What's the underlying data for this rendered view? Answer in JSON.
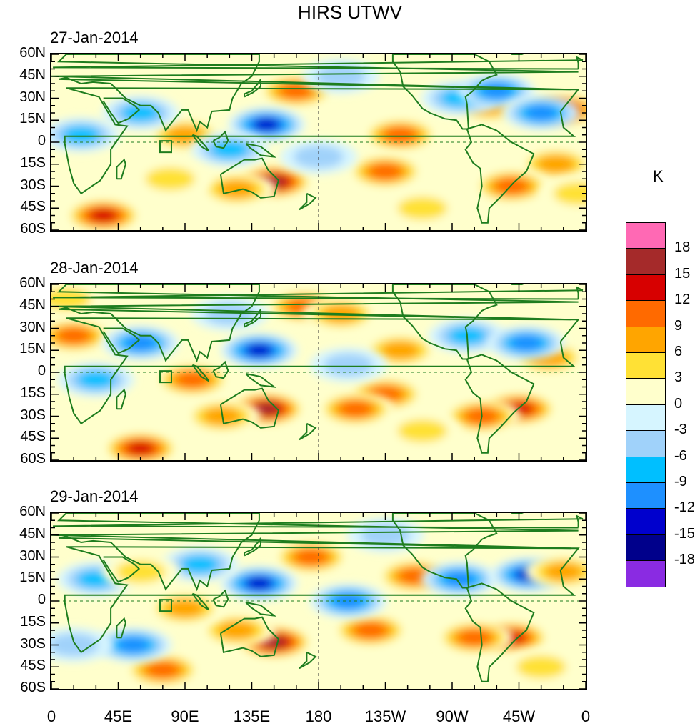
{
  "title": "HIRS UTWV",
  "unit": "K",
  "colorbar": {
    "colors": [
      "#8a2be2",
      "#00008b",
      "#0000cd",
      "#1e90ff",
      "#00bfff",
      "#a0d2fa",
      "#d6f5ff",
      "#ffffcc",
      "#ffe135",
      "#ffa500",
      "#ff6a00",
      "#d70000",
      "#a52a2a",
      "#ff69b4"
    ],
    "labels": [
      "18",
      "15",
      "12",
      "9",
      "6",
      "3",
      "0",
      "-3",
      "-6",
      "-9",
      "-12",
      "-15",
      "-18"
    ]
  },
  "chart_data": {
    "type": "heatmap",
    "title": "HIRS UTWV",
    "colorbar_unit": "K",
    "levels": [
      -18,
      -15,
      -12,
      -9,
      -6,
      -3,
      0,
      3,
      6,
      9,
      12,
      15,
      18
    ],
    "x_ticks": [
      "0",
      "45E",
      "90E",
      "135E",
      "180",
      "135W",
      "90W",
      "45W",
      "0"
    ],
    "y_ticks": [
      "60N",
      "45N",
      "30N",
      "15N",
      "0",
      "15S",
      "30S",
      "45S",
      "60S"
    ],
    "xlim": [
      0,
      360
    ],
    "ylim": [
      -60,
      60
    ],
    "panels": [
      {
        "date": "27-Jan-2014",
        "features": [
          {
            "lon": 345,
            "lat": 22,
            "value": 14
          },
          {
            "lon": 150,
            "lat": -27,
            "value": 17
          },
          {
            "lon": 125,
            "lat": -32,
            "value": 9
          },
          {
            "lon": 35,
            "lat": -50,
            "value": 14
          },
          {
            "lon": 165,
            "lat": 35,
            "value": 10
          },
          {
            "lon": 145,
            "lat": 12,
            "value": -15
          },
          {
            "lon": 90,
            "lat": 5,
            "value": 9
          },
          {
            "lon": 235,
            "lat": 5,
            "value": 10
          },
          {
            "lon": 225,
            "lat": -20,
            "value": 12
          },
          {
            "lon": 295,
            "lat": 25,
            "value": 9
          },
          {
            "lon": 340,
            "lat": -15,
            "value": 9
          },
          {
            "lon": 310,
            "lat": -30,
            "value": 12
          },
          {
            "lon": 275,
            "lat": 30,
            "value": -9
          },
          {
            "lon": 300,
            "lat": 35,
            "value": -12
          },
          {
            "lon": 330,
            "lat": 20,
            "value": -12
          },
          {
            "lon": 60,
            "lat": 20,
            "value": -9
          },
          {
            "lon": 20,
            "lat": 5,
            "value": -9
          },
          {
            "lon": 195,
            "lat": 45,
            "value": -6
          },
          {
            "lon": 180,
            "lat": -10,
            "value": -6
          },
          {
            "lon": 120,
            "lat": -5,
            "value": -9
          },
          {
            "lon": 80,
            "lat": -25,
            "value": 6
          },
          {
            "lon": 250,
            "lat": -45,
            "value": 6
          },
          {
            "lon": 355,
            "lat": -35,
            "value": 6
          }
        ]
      },
      {
        "date": "28-Jan-2014",
        "features": [
          {
            "lon": 145,
            "lat": -25,
            "value": 18
          },
          {
            "lon": 115,
            "lat": -30,
            "value": 9
          },
          {
            "lon": 15,
            "lat": 25,
            "value": 12
          },
          {
            "lon": 60,
            "lat": -52,
            "value": 14
          },
          {
            "lon": 170,
            "lat": 45,
            "value": 10
          },
          {
            "lon": 195,
            "lat": 40,
            "value": 9
          },
          {
            "lon": 140,
            "lat": 15,
            "value": -15
          },
          {
            "lon": 95,
            "lat": -5,
            "value": 10
          },
          {
            "lon": 235,
            "lat": 15,
            "value": 8
          },
          {
            "lon": 225,
            "lat": -15,
            "value": 10
          },
          {
            "lon": 205,
            "lat": -25,
            "value": 12
          },
          {
            "lon": 315,
            "lat": -25,
            "value": 14
          },
          {
            "lon": 290,
            "lat": -30,
            "value": 12
          },
          {
            "lon": 335,
            "lat": 10,
            "value": 8
          },
          {
            "lon": 280,
            "lat": 25,
            "value": -9
          },
          {
            "lon": 320,
            "lat": 20,
            "value": -12
          },
          {
            "lon": 60,
            "lat": 20,
            "value": -12
          },
          {
            "lon": 30,
            "lat": -5,
            "value": -9
          },
          {
            "lon": 120,
            "lat": 40,
            "value": -6
          },
          {
            "lon": 200,
            "lat": 5,
            "value": -6
          },
          {
            "lon": 250,
            "lat": -40,
            "value": 6
          },
          {
            "lon": 10,
            "lat": 50,
            "value": 6
          }
        ]
      },
      {
        "date": "29-Jan-2014",
        "features": [
          {
            "lon": 150,
            "lat": -28,
            "value": 18
          },
          {
            "lon": 125,
            "lat": -20,
            "value": 9
          },
          {
            "lon": 175,
            "lat": 30,
            "value": 12
          },
          {
            "lon": 75,
            "lat": -47,
            "value": 12
          },
          {
            "lon": 215,
            "lat": -20,
            "value": 12
          },
          {
            "lon": 245,
            "lat": 17,
            "value": 12
          },
          {
            "lon": 140,
            "lat": 12,
            "value": -15
          },
          {
            "lon": 90,
            "lat": -5,
            "value": 9
          },
          {
            "lon": 55,
            "lat": -30,
            "value": -12
          },
          {
            "lon": 200,
            "lat": 0,
            "value": -12
          },
          {
            "lon": 275,
            "lat": 15,
            "value": -12
          },
          {
            "lon": 322,
            "lat": 18,
            "value": -15
          },
          {
            "lon": 310,
            "lat": -25,
            "value": 14
          },
          {
            "lon": 285,
            "lat": -25,
            "value": 12
          },
          {
            "lon": 345,
            "lat": 20,
            "value": 9
          },
          {
            "lon": 100,
            "lat": 25,
            "value": -9
          },
          {
            "lon": 30,
            "lat": 15,
            "value": -9
          },
          {
            "lon": 60,
            "lat": 20,
            "value": 6
          },
          {
            "lon": 225,
            "lat": 45,
            "value": -6
          },
          {
            "lon": 330,
            "lat": -45,
            "value": 6
          },
          {
            "lon": 15,
            "lat": -30,
            "value": -6
          }
        ]
      }
    ]
  }
}
